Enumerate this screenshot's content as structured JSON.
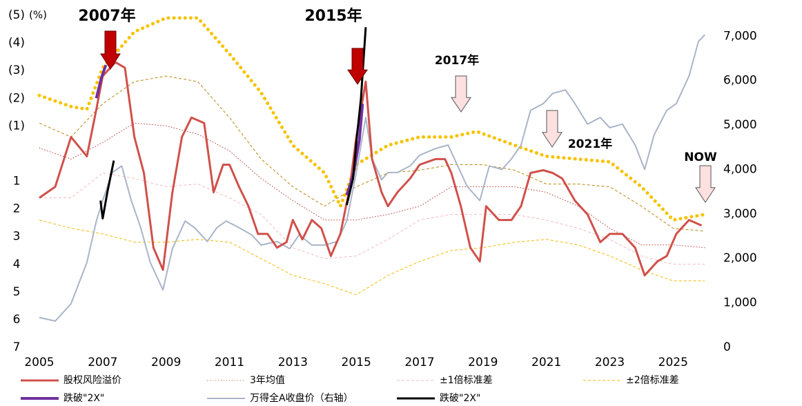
{
  "chart_data": {
    "type": "line",
    "y_unit": "(%)",
    "xlim": [
      2005,
      2026.3
    ],
    "xticks": [
      2005,
      2007,
      2009,
      2011,
      2013,
      2015,
      2017,
      2019,
      2021,
      2023,
      2025
    ],
    "ylim": [
      -5,
      7
    ],
    "y_inverted": true,
    "yticks": [
      {
        "value": -5,
        "label": "(5)"
      },
      {
        "value": -4,
        "label": "(4)"
      },
      {
        "value": -3,
        "label": "(3)"
      },
      {
        "value": -2,
        "label": "(2)"
      },
      {
        "value": -1,
        "label": "(1)"
      },
      1,
      2,
      3,
      4,
      5,
      6,
      7
    ],
    "negative_tick_color": "#c00000",
    "y2lim": [
      0,
      7470
    ],
    "y2ticks": [
      0,
      {
        "value": 1000,
        "label": "1,000"
      },
      {
        "value": 2000,
        "label": "2,000"
      },
      {
        "value": 3000,
        "label": "3,000"
      },
      {
        "value": 4000,
        "label": "4,000"
      },
      {
        "value": 5000,
        "label": "5,000"
      },
      {
        "value": 6000,
        "label": "6,000"
      },
      {
        "value": 7000,
        "label": "7,000"
      }
    ],
    "grid": false,
    "series": [
      {
        "name": "股权风险溢价",
        "color": "#d0504a",
        "style": "solid",
        "linewidth": 3,
        "x": [
          2005.0,
          2005.5,
          2006.0,
          2006.5,
          2006.8,
          2007.0,
          2007.4,
          2007.7,
          2008.0,
          2008.3,
          2008.6,
          2008.9,
          2009.2,
          2009.5,
          2009.8,
          2010.2,
          2010.5,
          2010.8,
          2011.0,
          2011.3,
          2011.6,
          2011.9,
          2012.2,
          2012.5,
          2012.8,
          2013.0,
          2013.3,
          2013.6,
          2013.9,
          2014.2,
          2014.5,
          2014.8,
          2015.0,
          2015.3,
          2015.5,
          2015.8,
          2016.0,
          2016.3,
          2016.7,
          2017.0,
          2017.5,
          2017.8,
          2018.0,
          2018.3,
          2018.6,
          2018.9,
          2019.1,
          2019.5,
          2019.9,
          2020.2,
          2020.5,
          2020.9,
          2021.2,
          2021.5,
          2021.9,
          2022.3,
          2022.7,
          2023.0,
          2023.4,
          2023.8,
          2024.1,
          2024.5,
          2024.8,
          2025.1,
          2025.5,
          2025.9
        ],
        "values": [
          1.6,
          1.2,
          -0.6,
          0.1,
          -1.6,
          -2.8,
          -3.3,
          -3.1,
          -0.6,
          0.7,
          3.4,
          4.2,
          1.4,
          -0.6,
          -1.3,
          -1.1,
          1.4,
          0.4,
          0.4,
          1.2,
          1.9,
          2.9,
          2.9,
          3.4,
          3.2,
          2.4,
          3.1,
          2.4,
          2.7,
          3.7,
          2.9,
          1.2,
          -0.6,
          -2.6,
          0.2,
          1.4,
          1.9,
          1.4,
          0.9,
          0.4,
          0.2,
          0.2,
          0.7,
          1.9,
          3.4,
          3.9,
          1.9,
          2.4,
          2.4,
          1.9,
          0.7,
          0.6,
          0.7,
          0.9,
          1.7,
          2.2,
          3.2,
          2.9,
          2.9,
          3.4,
          4.4,
          3.9,
          3.7,
          2.9,
          2.4,
          2.6
        ]
      },
      {
        "name": "3年均值",
        "color": "#c0504d",
        "style": "dotted",
        "linewidth": 1,
        "x": [
          2005,
          2006,
          2007,
          2008,
          2009,
          2010,
          2011,
          2012,
          2013,
          2014,
          2015,
          2016,
          2017,
          2018,
          2019,
          2020,
          2021,
          2022,
          2023,
          2024,
          2025,
          2026
        ],
        "values": [
          -0.2,
          0.2,
          -0.4,
          -1.1,
          -1.0,
          -0.7,
          -0.1,
          0.9,
          1.7,
          2.4,
          2.4,
          2.2,
          1.9,
          1.2,
          1.2,
          1.2,
          1.4,
          1.9,
          2.7,
          3.3,
          3.3,
          3.4
        ]
      },
      {
        "name": "±1倍标准差",
        "color": "#f2b8c0",
        "style": "dashed",
        "linewidth": 1,
        "x": [
          2005,
          2006,
          2007,
          2008,
          2009,
          2010,
          2011,
          2012,
          2013,
          2014,
          2015,
          2016,
          2017,
          2018,
          2019,
          2020,
          2021,
          2022,
          2023,
          2024,
          2025,
          2026
        ],
        "values": [
          1.6,
          1.6,
          0.7,
          0.9,
          1.2,
          1.1,
          1.6,
          2.2,
          3.4,
          3.8,
          3.7,
          3.1,
          2.4,
          2.2,
          2.2,
          2.2,
          2.4,
          2.7,
          3.1,
          3.7,
          4.0,
          4.0
        ]
      },
      {
        "name": "±2倍标准差",
        "color": "#f5b800",
        "style": "dashed",
        "linewidth": 1,
        "x": [
          2005,
          2006,
          2007,
          2008,
          2009,
          2010,
          2011,
          2012,
          2013,
          2014,
          2015,
          2016,
          2017,
          2018,
          2019,
          2020,
          2021,
          2022,
          2023,
          2024,
          2025,
          2026
        ],
        "values": [
          2.4,
          2.7,
          2.9,
          3.2,
          3.2,
          3.1,
          3.2,
          3.8,
          4.4,
          4.7,
          5.1,
          4.4,
          3.9,
          3.5,
          3.4,
          3.2,
          3.1,
          3.3,
          3.7,
          4.2,
          4.6,
          4.6
        ]
      },
      {
        "name": "跌破\"2X\"",
        "color": "#7030a0",
        "style": "solid",
        "linewidth": 4,
        "x": [
          2006.8,
          2006.95,
          2007.1,
          2010,
          2014.7,
          2014.9,
          2015.1,
          2015.2
        ],
        "values": [
          -2.0,
          -2.7,
          -3.2,
          null,
          1.5,
          0.8,
          -0.5,
          -1.8
        ]
      },
      {
        "name": "万得全A收盘价（右轴）",
        "color": "#a9b4c8",
        "style": "solid",
        "linewidth": 2,
        "axis": "y2",
        "x": [
          2005.0,
          2005.5,
          2006.0,
          2006.5,
          2006.8,
          2007.0,
          2007.3,
          2007.6,
          2007.9,
          2008.2,
          2008.5,
          2008.9,
          2009.2,
          2009.6,
          2009.9,
          2010.3,
          2010.6,
          2010.9,
          2011.3,
          2011.7,
          2012.0,
          2012.5,
          2012.9,
          2013.2,
          2013.6,
          2014.0,
          2014.4,
          2014.7,
          2015.0,
          2015.3,
          2015.5,
          2015.8,
          2016.0,
          2016.3,
          2016.7,
          2017.0,
          2017.5,
          2017.9,
          2018.2,
          2018.5,
          2018.9,
          2019.2,
          2019.6,
          2019.9,
          2020.2,
          2020.5,
          2020.9,
          2021.2,
          2021.6,
          2021.9,
          2022.3,
          2022.7,
          2023.0,
          2023.4,
          2023.8,
          2024.1,
          2024.4,
          2024.8,
          2025.1,
          2025.5,
          2025.8,
          2026.0
        ],
        "values": [
          670,
          590,
          980,
          1910,
          2840,
          3300,
          3930,
          4080,
          3300,
          2690,
          1910,
          1290,
          2220,
          2840,
          2690,
          2380,
          2690,
          2840,
          2690,
          2530,
          2300,
          2380,
          2220,
          2530,
          2300,
          2300,
          2380,
          2840,
          3930,
          5170,
          4240,
          3770,
          3930,
          3930,
          4080,
          4320,
          4470,
          4550,
          4080,
          3620,
          3300,
          4080,
          4000,
          4240,
          4550,
          5330,
          5480,
          5710,
          5790,
          5480,
          5020,
          5170,
          4940,
          5020,
          4550,
          4000,
          4780,
          5330,
          5480,
          6100,
          6880,
          7030
        ]
      },
      {
        "name": "跌破\"2X\"",
        "color": "#000000",
        "style": "solid",
        "linewidth": 3,
        "axis": "y2",
        "x": [
          2006.93,
          2007.0,
          2007.15,
          2007.35,
          2010,
          2014.7,
          2014.9,
          2015.0,
          2015.15,
          2015.3
        ],
        "values": [
          3300,
          2900,
          3500,
          4200,
          null,
          3200,
          3800,
          4600,
          5600,
          7200
        ]
      },
      {
        "color": "#b8860b",
        "style": "dashed",
        "linewidth": 1,
        "x": [
          2005,
          2006,
          2007,
          2008,
          2009,
          2010,
          2011,
          2012,
          2013,
          2014,
          2015,
          2016,
          2017,
          2018,
          2019,
          2020,
          2021,
          2022,
          2023,
          2024,
          2025,
          2026
        ],
        "values": [
          -1.1,
          -0.6,
          -1.8,
          -2.6,
          -2.8,
          -2.6,
          -1.3,
          0.2,
          1.2,
          1.9,
          1.2,
          0.7,
          0.6,
          0.4,
          0.4,
          0.6,
          1.1,
          1.1,
          1.2,
          1.9,
          2.7,
          2.8
        ]
      },
      {
        "color": "#f7c200",
        "style": "dotted",
        "linewidth": 5,
        "x": [
          2005,
          2006,
          2006.5,
          2007,
          2008,
          2009,
          2010,
          2011,
          2012,
          2013,
          2014,
          2014.5,
          2015,
          2016,
          2017,
          2018,
          2018.8,
          2020,
          2021,
          2022,
          2023,
          2024,
          2025,
          2026
        ],
        "values": [
          -2.1,
          -1.7,
          -1.6,
          -3.1,
          -4.4,
          -4.9,
          -4.9,
          -3.6,
          -2.2,
          -0.3,
          0.7,
          1.9,
          0.4,
          -0.3,
          -0.6,
          -0.6,
          -0.8,
          -0.3,
          0.1,
          0.2,
          0.3,
          1.2,
          2.4,
          2.2
        ]
      }
    ],
    "annotations": [
      {
        "text": "2007年",
        "color": "#c00000",
        "arrow": "filled"
      },
      {
        "text": "2015年",
        "color": "#c00000",
        "arrow": "filled"
      },
      {
        "text": "2017年",
        "color": "#e8929a",
        "arrow": "outline"
      },
      {
        "text": "2021年",
        "color": "#e8929a",
        "arrow": "outline"
      },
      {
        "text": "NOW",
        "color": "#e8929a",
        "arrow": "outline"
      }
    ]
  }
}
